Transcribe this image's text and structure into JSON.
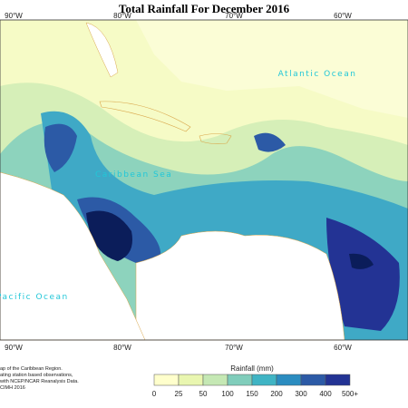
{
  "title": "Total Rainfall For December 2016",
  "longitudes_top": [
    "90°W",
    "80°W",
    "70°W",
    "60°W"
  ],
  "longitudes_bottom": [
    "90°W",
    "80°W",
    "70°W",
    "60°W"
  ],
  "labels": {
    "atlantic": "Atlantic Ocean",
    "caribbean": "Caribbean Sea",
    "pacific": "Pacific Ocean"
  },
  "credits": [
    "ap of the Caribbean Region.",
    "ating station based observations,",
    "with NCEP/NCAR Reanalysis Data.",
    "CIMH 2016"
  ],
  "legend": {
    "title": "Rainfall (mm)",
    "colors": [
      "#ffffcc",
      "#e9f6b0",
      "#c5e8b4",
      "#80cdbb",
      "#3fb4c4",
      "#2b8cc0",
      "#2c5aa6",
      "#233394",
      "#0b1d5a"
    ],
    "ticks": [
      "0",
      "25",
      "50",
      "100",
      "150",
      "200",
      "300",
      "400",
      "500+"
    ]
  }
}
